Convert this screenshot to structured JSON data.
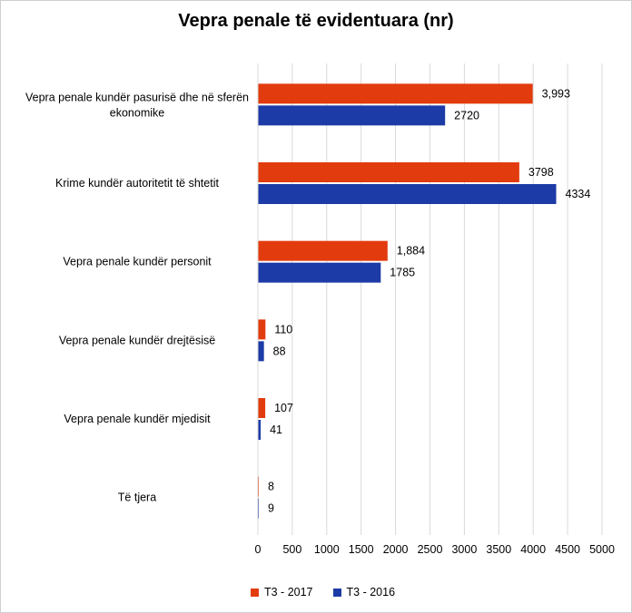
{
  "chart_data": {
    "type": "bar",
    "orientation": "horizontal",
    "title": "Vepra penale të evidentuara (nr)",
    "categories": [
      [
        "Vepra penale kundër pasurisë dhe në sferën",
        "ekonomike"
      ],
      [
        "Krime kundër autoritetit të shtetit"
      ],
      [
        "Vepra penale kundër personit"
      ],
      [
        "Vepra penale kundër drejtësisë"
      ],
      [
        "Vepra penale kundër mjedisit"
      ],
      [
        "Të tjera"
      ]
    ],
    "series": [
      {
        "name": "T3 - 2017",
        "color": "#e23b0e",
        "values": [
          3993,
          3798,
          1884,
          110,
          107,
          8
        ],
        "labels": [
          "3,993",
          "3798",
          "1,884",
          "110",
          "107",
          "8"
        ]
      },
      {
        "name": "T3 - 2016",
        "color": "#1d3ba6",
        "values": [
          2720,
          4334,
          1785,
          88,
          41,
          9
        ],
        "labels": [
          "2720",
          "4334",
          "1785",
          "88",
          "41",
          "9"
        ]
      }
    ],
    "xlim": [
      0,
      5000
    ],
    "xticks": [
      0,
      500,
      1000,
      1500,
      2000,
      2500,
      3000,
      3500,
      4000,
      4500,
      5000
    ],
    "grid": true,
    "legend_position": "bottom"
  }
}
